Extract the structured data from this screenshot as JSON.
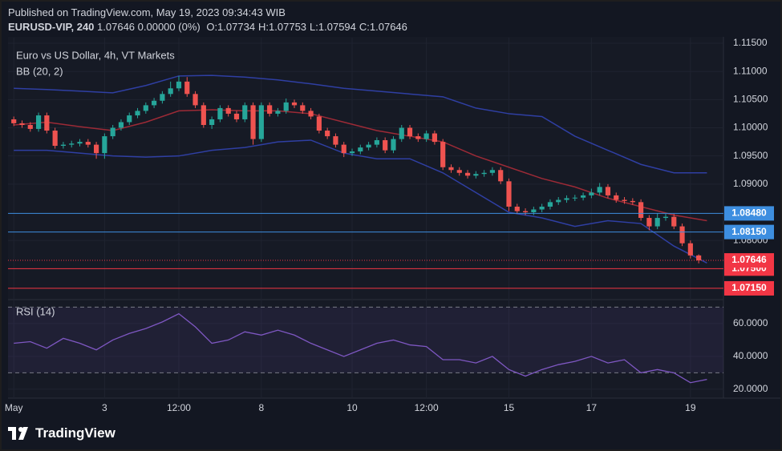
{
  "header": {
    "published": "Published on TradingView.com, May 19, 2023 09:34:43 WIB",
    "symbol": "EURUSD-VIP, 240",
    "quote": "1.07646 0.00000 (0%)",
    "ohlc": [
      "O:1.07734",
      "H:1.07753",
      "L:1.07594",
      "C:1.07646"
    ]
  },
  "chart_data": [
    {
      "type": "candlestick",
      "title": "Euro vs US Dollar, 4h, VT Markets",
      "up_color": "#26a69a",
      "down_color": "#ef5350",
      "x": [
        0,
        1,
        2,
        3,
        4,
        5,
        6,
        7,
        8,
        9,
        10,
        11,
        12,
        13,
        14,
        15,
        16,
        17,
        18,
        19,
        20,
        21,
        22,
        23,
        24,
        25,
        26,
        27,
        28,
        29,
        30,
        31,
        32,
        33,
        34,
        35,
        36,
        37,
        38,
        39,
        40,
        41,
        42,
        43,
        44,
        45,
        46,
        47,
        48,
        49,
        50,
        51,
        52,
        53,
        54,
        55,
        56,
        57,
        58,
        59,
        60,
        61,
        62,
        63,
        64,
        65,
        66,
        67,
        68,
        69,
        70,
        71,
        72,
        73,
        74,
        75,
        76,
        77,
        78,
        79,
        80,
        81,
        82,
        83
      ],
      "open": [
        1.1015,
        1.1008,
        1.1005,
        1.0998,
        1.1022,
        1.0995,
        1.0968,
        1.097,
        1.0972,
        1.0975,
        1.097,
        1.0955,
        1.0985,
        1.1,
        1.101,
        1.1022,
        1.103,
        1.104,
        1.1048,
        1.106,
        1.107,
        1.1082,
        1.106,
        1.104,
        1.1005,
        1.1015,
        1.1035,
        1.1025,
        1.1015,
        1.104,
        1.098,
        1.104,
        1.1025,
        1.103,
        1.1045,
        1.104,
        1.103,
        1.102,
        1.0995,
        1.0985,
        1.097,
        1.0955,
        1.0958,
        1.0965,
        1.097,
        1.0978,
        1.096,
        1.098,
        1.1,
        1.0985,
        1.098,
        1.099,
        1.0975,
        1.093,
        1.0925,
        1.092,
        1.0915,
        1.0918,
        1.092,
        1.0925,
        1.0905,
        1.086,
        1.0852,
        1.085,
        1.0855,
        1.086,
        1.0868,
        1.0872,
        1.0875,
        1.0876,
        1.088,
        1.0885,
        1.0895,
        1.088,
        1.0872,
        1.087,
        1.0868,
        1.084,
        1.0825,
        1.084,
        1.0842,
        1.0825,
        1.0795,
        1.07734
      ],
      "high": [
        1.102,
        1.1013,
        1.101,
        1.1027,
        1.1027,
        1.1,
        1.0975,
        1.0977,
        1.098,
        1.098,
        1.0975,
        1.099,
        1.1005,
        1.1015,
        1.1027,
        1.1035,
        1.1045,
        1.1053,
        1.1065,
        1.1082,
        1.1092,
        1.109,
        1.1065,
        1.1045,
        1.102,
        1.104,
        1.104,
        1.103,
        1.1045,
        1.1045,
        1.1045,
        1.1045,
        1.1035,
        1.1052,
        1.105,
        1.1045,
        1.1035,
        1.1025,
        1.1,
        1.099,
        1.0975,
        1.0963,
        1.097,
        1.0975,
        1.0983,
        1.0983,
        1.0985,
        1.1005,
        1.1005,
        1.099,
        1.0995,
        1.0995,
        1.098,
        1.0935,
        1.093,
        1.0925,
        1.0923,
        1.0925,
        1.093,
        1.093,
        1.091,
        1.0865,
        1.0857,
        1.086,
        1.0865,
        1.0873,
        1.0877,
        1.088,
        1.0881,
        1.0885,
        1.0892,
        1.0902,
        1.09,
        1.0885,
        1.0877,
        1.0875,
        1.0873,
        1.0845,
        1.0848,
        1.0847,
        1.0847,
        1.083,
        1.08,
        1.07753
      ],
      "low": [
        1.1003,
        1.1,
        1.0993,
        1.0993,
        1.099,
        1.0963,
        1.0963,
        1.0965,
        1.0967,
        1.0965,
        1.0945,
        1.0945,
        1.098,
        1.0995,
        1.1005,
        1.1017,
        1.1025,
        1.1035,
        1.1043,
        1.1055,
        1.1065,
        1.1055,
        1.1035,
        1.1,
        1.0998,
        1.101,
        1.102,
        1.101,
        1.101,
        1.097,
        1.0975,
        1.102,
        1.102,
        1.1025,
        1.1035,
        1.1025,
        1.1015,
        1.099,
        1.098,
        1.0965,
        1.0948,
        1.095,
        1.0953,
        1.096,
        1.0965,
        1.0955,
        1.0955,
        1.0975,
        1.098,
        1.0975,
        1.0975,
        1.097,
        1.0925,
        1.092,
        1.0915,
        1.091,
        1.091,
        1.0913,
        1.0915,
        1.09,
        1.0852,
        1.0847,
        1.0845,
        1.0845,
        1.085,
        1.0855,
        1.0863,
        1.0867,
        1.087,
        1.0871,
        1.0875,
        1.088,
        1.0875,
        1.0867,
        1.0865,
        1.0863,
        1.0835,
        1.0818,
        1.082,
        1.0835,
        1.082,
        1.079,
        1.0768,
        1.07594
      ],
      "close": [
        1.1008,
        1.1005,
        1.0998,
        1.1022,
        1.0995,
        1.0968,
        1.097,
        1.0972,
        1.0975,
        1.097,
        1.0955,
        1.0985,
        1.1,
        1.101,
        1.1022,
        1.103,
        1.104,
        1.1048,
        1.106,
        1.107,
        1.1082,
        1.106,
        1.104,
        1.1005,
        1.1015,
        1.1035,
        1.1025,
        1.1015,
        1.104,
        1.098,
        1.104,
        1.1025,
        1.103,
        1.1045,
        1.104,
        1.103,
        1.102,
        1.0995,
        1.0985,
        1.097,
        1.0955,
        1.0958,
        1.0965,
        1.097,
        1.0978,
        1.096,
        1.098,
        1.1,
        1.0985,
        1.098,
        1.099,
        1.0975,
        1.093,
        1.0925,
        1.092,
        1.0915,
        1.0918,
        1.092,
        1.0925,
        1.0905,
        1.086,
        1.0852,
        1.085,
        1.0855,
        1.086,
        1.0868,
        1.0872,
        1.0875,
        1.0876,
        1.088,
        1.0885,
        1.0895,
        1.088,
        1.0872,
        1.087,
        1.0868,
        1.084,
        1.0825,
        1.084,
        1.0842,
        1.0825,
        1.0795,
        1.07734,
        1.07646
      ],
      "indicator": {
        "name": "BB (20, 2)",
        "x": [
          0,
          4,
          8,
          12,
          16,
          20,
          24,
          28,
          32,
          36,
          40,
          44,
          48,
          52,
          56,
          60,
          64,
          68,
          72,
          76,
          80,
          84
        ],
        "series": [
          {
            "color": "#2f3fa3",
            "values": [
              1.107,
              1.1068,
              1.1065,
              1.1062,
              1.1075,
              1.1092,
              1.1093,
              1.109,
              1.1085,
              1.1078,
              1.107,
              1.1065,
              1.106,
              1.1055,
              1.1035,
              1.1025,
              1.102,
              1.0985,
              1.096,
              1.0935,
              1.092,
              1.092
            ]
          },
          {
            "color": "#9c2a36",
            "values": [
              1.1005,
              1.101,
              1.1002,
              1.0995,
              1.101,
              1.103,
              1.1032,
              1.103,
              1.103,
              1.1025,
              1.101,
              1.0995,
              1.0985,
              1.0975,
              1.095,
              1.093,
              1.091,
              1.0895,
              1.0875,
              1.086,
              1.0845,
              1.0835
            ]
          },
          {
            "color": "#2f3fa3",
            "values": [
              1.096,
              1.096,
              1.0955,
              1.095,
              1.0948,
              1.095,
              1.096,
              1.0965,
              1.0975,
              1.0978,
              1.0955,
              1.0945,
              1.0945,
              1.092,
              1.0885,
              1.085,
              1.084,
              1.0825,
              1.0835,
              1.083,
              1.079,
              1.076
            ]
          }
        ]
      },
      "levels": [
        {
          "value": 1.0848,
          "label": "1.08480",
          "color": "#3d8ee0"
        },
        {
          "value": 1.0815,
          "label": "1.08150",
          "color": "#3d8ee0"
        },
        {
          "value": 1.075,
          "label": "1.07500",
          "color": "#f23645"
        },
        {
          "value": 1.0715,
          "label": "1.07150",
          "color": "#f23645"
        }
      ],
      "last_price": {
        "value": 1.07646,
        "label": "1.07646",
        "color": "#f23645"
      },
      "xlim": [
        -0.7,
        86
      ],
      "ylim": [
        1.0695,
        1.116
      ],
      "yticks": [
        {
          "value": 1.115,
          "label": "1.11500"
        },
        {
          "value": 1.11,
          "label": "1.11000"
        },
        {
          "value": 1.105,
          "label": "1.10500"
        },
        {
          "value": 1.1,
          "label": "1.10000"
        },
        {
          "value": 1.095,
          "label": "1.09500"
        },
        {
          "value": 1.09,
          "label": "1.09000"
        },
        {
          "value": 1.08,
          "label": "1.08000"
        }
      ],
      "xticks": [
        {
          "value": 0,
          "label": "May"
        },
        {
          "value": 11,
          "label": "3"
        },
        {
          "value": 20,
          "label": "12:00"
        },
        {
          "value": 30,
          "label": "8"
        },
        {
          "value": 41,
          "label": "10"
        },
        {
          "value": 50,
          "label": "12:00"
        },
        {
          "value": 60,
          "label": "15"
        },
        {
          "value": 70,
          "label": "17"
        },
        {
          "value": 82,
          "label": "19"
        }
      ]
    },
    {
      "type": "line",
      "title": "RSI (14)",
      "x": [
        0,
        2,
        4,
        6,
        8,
        10,
        12,
        14,
        16,
        18,
        20,
        22,
        24,
        26,
        28,
        30,
        32,
        34,
        36,
        38,
        40,
        42,
        44,
        46,
        48,
        50,
        52,
        54,
        56,
        58,
        60,
        62,
        64,
        66,
        68,
        70,
        72,
        74,
        76,
        78,
        80,
        82,
        84
      ],
      "series": [
        {
          "color": "#7e57c2",
          "values": [
            48,
            49,
            45,
            51,
            48,
            44,
            50,
            54,
            57,
            61,
            66,
            58,
            48,
            50,
            55,
            53,
            56,
            53,
            48,
            44,
            40,
            44,
            48,
            50,
            47,
            46,
            38,
            38,
            36,
            40,
            32,
            28,
            32,
            35,
            37,
            40,
            36,
            38,
            30,
            32,
            30,
            24,
            26
          ]
        }
      ],
      "levels": [
        70,
        30
      ],
      "xlim": [
        -0.7,
        86
      ],
      "ylim": [
        14.6,
        74.6
      ],
      "yticks": [
        {
          "value": 60,
          "label": "60.0000"
        },
        {
          "value": 40,
          "label": "40.0000"
        },
        {
          "value": 20,
          "label": "20.0000"
        }
      ]
    }
  ],
  "footer": {
    "logo": "TradingView"
  }
}
